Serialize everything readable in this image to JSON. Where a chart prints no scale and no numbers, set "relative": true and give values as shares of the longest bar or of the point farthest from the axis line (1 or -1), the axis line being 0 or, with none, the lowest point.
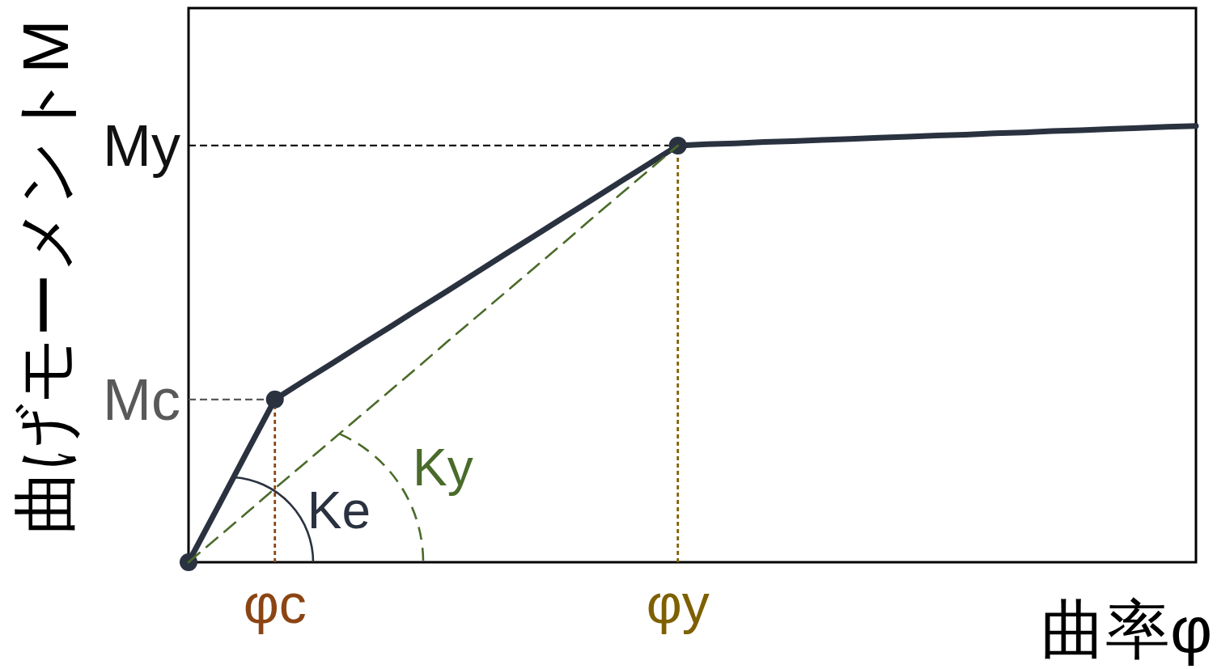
{
  "chart_data": {
    "type": "line",
    "relative": true,
    "xlabel": "曲率φ",
    "ylabel": "曲げモーメントM",
    "categories": [
      null,
      null,
      null,
      "φc",
      null,
      null,
      null,
      null,
      null,
      null,
      null,
      null,
      null,
      null,
      null,
      null,
      null,
      "φy",
      null,
      null,
      null,
      null,
      null,
      null,
      null,
      null,
      null,
      null,
      null,
      null,
      null,
      null,
      null,
      null,
      null,
      null
    ],
    "series": [
      {
        "type": "line",
        "color": "#2a3240",
        "values": [
          0,
          0.124,
          0.249,
          0.373,
          0.415,
          0.456,
          0.498,
          0.539,
          0.581,
          0.622,
          0.664,
          0.706,
          0.747,
          0.789,
          0.83,
          0.872,
          0.913,
          0.955,
          0.958,
          0.96,
          0.963,
          0.965,
          0.968,
          0.97,
          0.973,
          0.975,
          0.978,
          0.98,
          0.983,
          0.985,
          0.988,
          0.99,
          0.993,
          0.995,
          0.998,
          1
        ]
      },
      {
        "type": "scatter",
        "color": "#2a3240",
        "marker": "circle",
        "values": [
          0,
          null,
          null,
          0.373,
          null,
          null,
          null,
          null,
          null,
          null,
          null,
          null,
          null,
          null,
          null,
          null,
          null,
          0.955,
          null,
          null,
          null,
          null,
          null,
          null,
          null,
          null,
          null,
          null,
          null,
          null,
          null,
          null,
          null,
          null,
          null,
          null
        ]
      },
      {
        "type": "line",
        "name": "Ky",
        "color": "#4a6b2a",
        "line_style": "dashed",
        "values": [
          0,
          0.056,
          0.112,
          0.169,
          0.225,
          0.281,
          0.337,
          0.393,
          0.449,
          0.506,
          0.562,
          0.618,
          0.674,
          0.73,
          0.787,
          0.843,
          0.899,
          0.955,
          null,
          null,
          null,
          null,
          null,
          null,
          null,
          null,
          null,
          null,
          null,
          null,
          null,
          null,
          null,
          null,
          null,
          null
        ]
      }
    ],
    "ref_lines": [
      {
        "axis": "y",
        "value": 0.955,
        "label": "My",
        "color": "#111111",
        "line_style": "dashed"
      },
      {
        "axis": "y",
        "value": 0.373,
        "label": "Mc",
        "color": "#595959",
        "line_style": "dashed"
      },
      {
        "axis": "x",
        "value": "φc",
        "color": "#8b4513",
        "line_style": "dotted"
      },
      {
        "axis": "x",
        "value": "φy",
        "color": "#7f6000",
        "line_style": "dotted"
      }
    ],
    "annotations": [
      "Ke"
    ]
  }
}
